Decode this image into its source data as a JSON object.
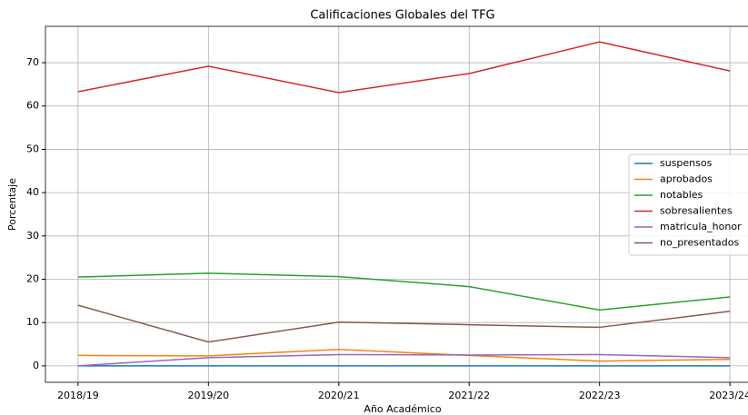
{
  "chart_data": {
    "type": "line",
    "title": "Calificaciones Globales del TFG",
    "x_label": "Año Académico",
    "y_label": "Porcentaje",
    "categories": [
      "2018/19",
      "2019/20",
      "2020/21",
      "2021/22",
      "2022/23",
      "2023/24"
    ],
    "series": [
      {
        "name": "suspensos",
        "color": "#1f77b4",
        "values": [
          0,
          0,
          0,
          0,
          0,
          0
        ]
      },
      {
        "name": "aprobados",
        "color": "#ff7f0e",
        "values": [
          2.4,
          2.3,
          3.8,
          2.4,
          1.1,
          1.5
        ]
      },
      {
        "name": "notables",
        "color": "#2ca02c",
        "values": [
          20.5,
          21.4,
          20.6,
          18.3,
          12.9,
          15.9
        ]
      },
      {
        "name": "sobresalientes",
        "color": "#d62728",
        "values": [
          63.3,
          69.2,
          63.1,
          67.5,
          74.8,
          68.1
        ]
      },
      {
        "name": "matricula_honor",
        "color": "#9467bd",
        "values": [
          0,
          1.9,
          2.6,
          2.5,
          2.6,
          1.9
        ]
      },
      {
        "name": "no_presentados",
        "color": "#8c564b",
        "values": [
          14.0,
          5.5,
          10.1,
          9.5,
          8.9,
          12.6
        ]
      }
    ],
    "ylim": [
      -3.8,
      78.4
    ],
    "yticks": [
      0,
      10,
      20,
      30,
      40,
      50,
      60,
      70
    ],
    "grid": true,
    "legend": "center right"
  }
}
